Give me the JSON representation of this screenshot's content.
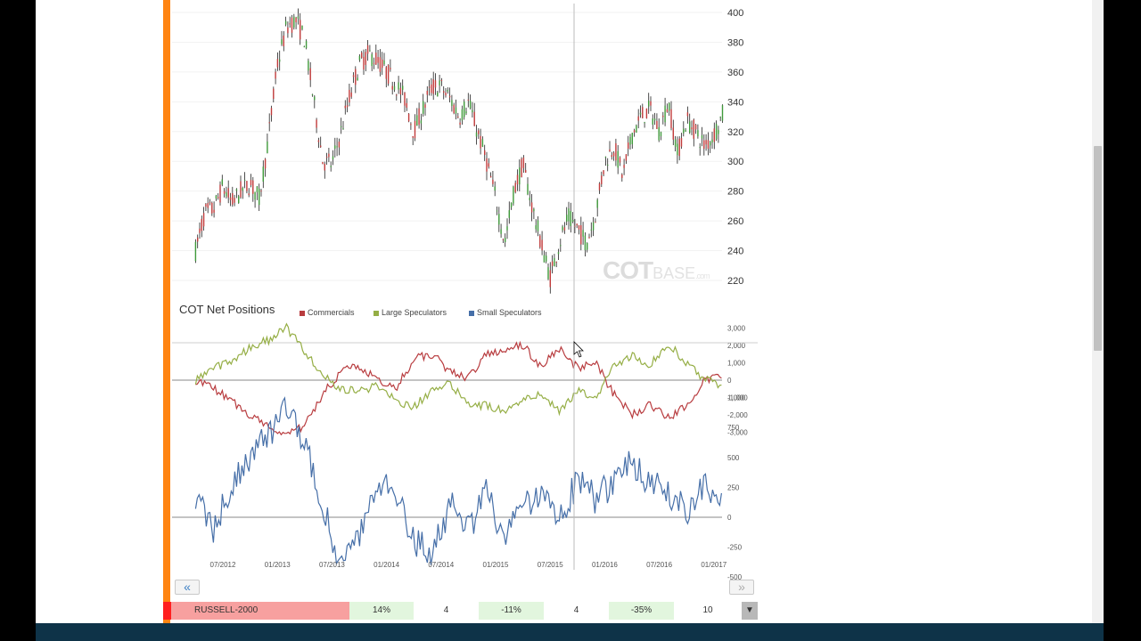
{
  "chart_data": [
    {
      "type": "candlestick",
      "title": "",
      "instrument": "RUSSELL-2000",
      "ylim": [
        215,
        402
      ],
      "y_ticks": [
        "400",
        "380",
        "360",
        "340",
        "320",
        "300",
        "280",
        "260",
        "240",
        "220"
      ],
      "price_path": [
        {
          "x": "2012-04",
          "y": 240
        },
        {
          "x": "2012-05",
          "y": 265
        },
        {
          "x": "2012-06",
          "y": 268
        },
        {
          "x": "2012-07",
          "y": 283
        },
        {
          "x": "2012-08",
          "y": 272
        },
        {
          "x": "2012-09",
          "y": 280
        },
        {
          "x": "2012-10",
          "y": 285
        },
        {
          "x": "2012-11",
          "y": 275
        },
        {
          "x": "2012-12",
          "y": 315
        },
        {
          "x": "2013-01",
          "y": 365
        },
        {
          "x": "2013-02",
          "y": 390
        },
        {
          "x": "2013-03",
          "y": 395
        },
        {
          "x": "2013-04",
          "y": 382
        },
        {
          "x": "2013-05",
          "y": 340
        },
        {
          "x": "2013-06",
          "y": 300
        },
        {
          "x": "2013-07",
          "y": 298
        },
        {
          "x": "2013-08",
          "y": 320
        },
        {
          "x": "2013-09",
          "y": 345
        },
        {
          "x": "2013-10",
          "y": 365
        },
        {
          "x": "2013-11",
          "y": 372
        },
        {
          "x": "2013-12",
          "y": 368
        },
        {
          "x": "2014-01",
          "y": 360
        },
        {
          "x": "2014-02",
          "y": 352
        },
        {
          "x": "2014-03",
          "y": 342
        },
        {
          "x": "2014-04",
          "y": 320
        },
        {
          "x": "2014-05",
          "y": 335
        },
        {
          "x": "2014-06",
          "y": 350
        },
        {
          "x": "2014-07",
          "y": 350
        },
        {
          "x": "2014-08",
          "y": 342
        },
        {
          "x": "2014-09",
          "y": 330
        },
        {
          "x": "2014-10",
          "y": 340
        },
        {
          "x": "2014-11",
          "y": 320
        },
        {
          "x": "2014-12",
          "y": 300
        },
        {
          "x": "2015-01",
          "y": 275
        },
        {
          "x": "2015-02",
          "y": 245
        },
        {
          "x": "2015-03",
          "y": 280
        },
        {
          "x": "2015-04",
          "y": 298
        },
        {
          "x": "2015-05",
          "y": 270
        },
        {
          "x": "2015-06",
          "y": 245
        },
        {
          "x": "2015-07",
          "y": 222
        },
        {
          "x": "2015-08",
          "y": 245
        },
        {
          "x": "2015-09",
          "y": 262
        },
        {
          "x": "2015-10",
          "y": 255
        },
        {
          "x": "2015-11",
          "y": 245
        },
        {
          "x": "2015-12",
          "y": 265
        },
        {
          "x": "2016-01",
          "y": 300
        },
        {
          "x": "2016-02",
          "y": 310
        },
        {
          "x": "2016-03",
          "y": 290
        },
        {
          "x": "2016-04",
          "y": 318
        },
        {
          "x": "2016-05",
          "y": 330
        },
        {
          "x": "2016-06",
          "y": 335
        },
        {
          "x": "2016-07",
          "y": 320
        },
        {
          "x": "2016-08",
          "y": 340
        },
        {
          "x": "2016-09",
          "y": 305
        },
        {
          "x": "2016-10",
          "y": 328
        },
        {
          "x": "2016-11",
          "y": 320
        },
        {
          "x": "2016-12",
          "y": 310
        },
        {
          "x": "2017-01",
          "y": 318
        },
        {
          "x": "2017-02",
          "y": 332
        }
      ]
    },
    {
      "type": "line",
      "title": "COT Net Positions",
      "ylim": [
        -3500,
        3200
      ],
      "y_ticks": [
        "3,000",
        "2,000",
        "1,000",
        "0",
        "-1,000",
        "-2,000",
        "-3,000"
      ],
      "series": [
        {
          "name": "Commercials",
          "color": "#b83c3f",
          "values": [
            {
              "x": "2012-04",
              "y": 0
            },
            {
              "x": "2012-06",
              "y": -500
            },
            {
              "x": "2012-08",
              "y": -1200
            },
            {
              "x": "2012-10",
              "y": -2000
            },
            {
              "x": "2012-12",
              "y": -2600
            },
            {
              "x": "2013-02",
              "y": -3200
            },
            {
              "x": "2013-04",
              "y": -2600
            },
            {
              "x": "2013-06",
              "y": -800
            },
            {
              "x": "2013-08",
              "y": 500
            },
            {
              "x": "2013-10",
              "y": 800
            },
            {
              "x": "2013-12",
              "y": 0
            },
            {
              "x": "2014-02",
              "y": -500
            },
            {
              "x": "2014-04",
              "y": 1200
            },
            {
              "x": "2014-06",
              "y": 1500
            },
            {
              "x": "2014-08",
              "y": 500
            },
            {
              "x": "2014-10",
              "y": 100
            },
            {
              "x": "2014-12",
              "y": 1500
            },
            {
              "x": "2015-02",
              "y": 1800
            },
            {
              "x": "2015-04",
              "y": 2000
            },
            {
              "x": "2015-06",
              "y": 800
            },
            {
              "x": "2015-08",
              "y": 1800
            },
            {
              "x": "2015-10",
              "y": 700
            },
            {
              "x": "2015-12",
              "y": 1000
            },
            {
              "x": "2016-02",
              "y": -800
            },
            {
              "x": "2016-04",
              "y": -2000
            },
            {
              "x": "2016-06",
              "y": -1400
            },
            {
              "x": "2016-08",
              "y": -2200
            },
            {
              "x": "2016-10",
              "y": -1500
            },
            {
              "x": "2016-12",
              "y": 0
            },
            {
              "x": "2017-02",
              "y": 300
            }
          ]
        },
        {
          "name": "Large Speculators",
          "color": "#95ae45",
          "values": [
            {
              "x": "2012-04",
              "y": 0
            },
            {
              "x": "2012-06",
              "y": 700
            },
            {
              "x": "2012-08",
              "y": 1100
            },
            {
              "x": "2012-10",
              "y": 1900
            },
            {
              "x": "2012-12",
              "y": 2300
            },
            {
              "x": "2013-02",
              "y": 3000
            },
            {
              "x": "2013-04",
              "y": 1700
            },
            {
              "x": "2013-06",
              "y": 300
            },
            {
              "x": "2013-08",
              "y": -500
            },
            {
              "x": "2013-10",
              "y": -700
            },
            {
              "x": "2013-12",
              "y": -300
            },
            {
              "x": "2014-02",
              "y": -1200
            },
            {
              "x": "2014-04",
              "y": -1500
            },
            {
              "x": "2014-06",
              "y": -700
            },
            {
              "x": "2014-08",
              "y": -200
            },
            {
              "x": "2014-10",
              "y": -1300
            },
            {
              "x": "2014-12",
              "y": -1500
            },
            {
              "x": "2015-02",
              "y": -1700
            },
            {
              "x": "2015-04",
              "y": -1100
            },
            {
              "x": "2015-06",
              "y": -800
            },
            {
              "x": "2015-08",
              "y": -1800
            },
            {
              "x": "2015-10",
              "y": -600
            },
            {
              "x": "2015-12",
              "y": -1000
            },
            {
              "x": "2016-02",
              "y": 800
            },
            {
              "x": "2016-04",
              "y": 1400
            },
            {
              "x": "2016-06",
              "y": 900
            },
            {
              "x": "2016-08",
              "y": 2100
            },
            {
              "x": "2016-10",
              "y": 1000
            },
            {
              "x": "2016-12",
              "y": 0
            },
            {
              "x": "2017-02",
              "y": -300
            }
          ]
        }
      ]
    },
    {
      "type": "line",
      "title": "",
      "ylim": [
        -600,
        1100
      ],
      "y_ticks": [
        "1,000",
        "750",
        "500",
        "250",
        "0",
        "-250",
        "-500"
      ],
      "x_ticks": [
        "07/2012",
        "01/2013",
        "07/2013",
        "01/2014",
        "07/2014",
        "01/2015",
        "07/2015",
        "01/2016",
        "07/2016",
        "01/2017"
      ],
      "series": [
        {
          "name": "Small Speculators",
          "color": "#466fa8",
          "values": [
            {
              "x": "2012-04",
              "y": 200
            },
            {
              "x": "2012-06",
              "y": -100
            },
            {
              "x": "2012-08",
              "y": 300
            },
            {
              "x": "2012-10",
              "y": 500
            },
            {
              "x": "2012-12",
              "y": 700
            },
            {
              "x": "2013-02",
              "y": 900
            },
            {
              "x": "2013-04",
              "y": 600
            },
            {
              "x": "2013-06",
              "y": 100
            },
            {
              "x": "2013-08",
              "y": -400
            },
            {
              "x": "2013-10",
              "y": -200
            },
            {
              "x": "2013-12",
              "y": 300
            },
            {
              "x": "2014-02",
              "y": 200
            },
            {
              "x": "2014-04",
              "y": -200
            },
            {
              "x": "2014-06",
              "y": -300
            },
            {
              "x": "2014-08",
              "y": 100
            },
            {
              "x": "2014-10",
              "y": -100
            },
            {
              "x": "2014-12",
              "y": 200
            },
            {
              "x": "2015-02",
              "y": -200
            },
            {
              "x": "2015-04",
              "y": 100
            },
            {
              "x": "2015-06",
              "y": 200
            },
            {
              "x": "2015-08",
              "y": 0
            },
            {
              "x": "2015-10",
              "y": 300
            },
            {
              "x": "2015-12",
              "y": 150
            },
            {
              "x": "2016-02",
              "y": 300
            },
            {
              "x": "2016-04",
              "y": 450
            },
            {
              "x": "2016-06",
              "y": 300
            },
            {
              "x": "2016-08",
              "y": 200
            },
            {
              "x": "2016-10",
              "y": 50
            },
            {
              "x": "2016-12",
              "y": 250
            },
            {
              "x": "2017-02",
              "y": 200
            }
          ]
        }
      ]
    }
  ],
  "watermark": {
    "main": "COT",
    "base": "BASE",
    "suffix": ".com"
  },
  "nav": {
    "prev": "«",
    "next": "»"
  },
  "table": {
    "name": "RUSSELL-2000",
    "p1": "14%",
    "n1": "4",
    "p2": "-11%",
    "n2": "4",
    "p3": "-35%",
    "n3": "10",
    "dropdown": "▼"
  }
}
